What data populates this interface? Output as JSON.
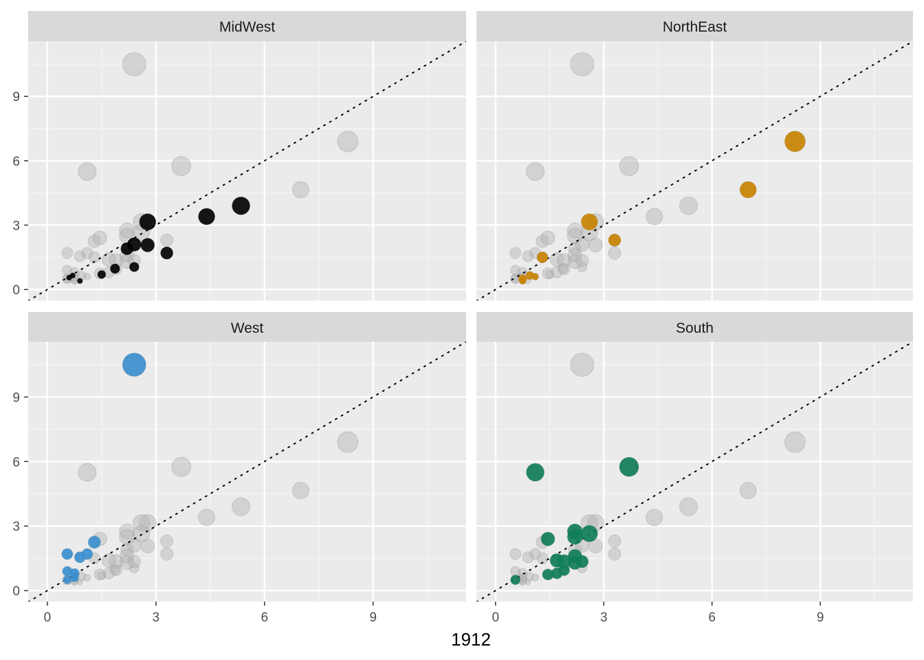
{
  "chart_data": {
    "type": "scatter",
    "title": "",
    "xlabel": "1912",
    "ylabel": "",
    "xlim": [
      -0.53,
      11.57
    ],
    "ylim": [
      -0.51,
      11.57
    ],
    "x_ticks": [
      0,
      3,
      6,
      9
    ],
    "y_ticks": [
      0,
      3,
      6,
      9
    ],
    "grid": true,
    "reference_line": {
      "type": "y = x",
      "style": "dotted",
      "color": "#000000"
    },
    "background_points_color": "#b3b3b3",
    "facets": [
      {
        "name": "MidWest",
        "color": "#000000"
      },
      {
        "name": "NorthEast",
        "color": "#c98300"
      },
      {
        "name": "West",
        "color": "#3a8fcf"
      },
      {
        "name": "South",
        "color": "#0e7d55"
      }
    ],
    "points": [
      {
        "region": "MidWest",
        "x": 0.9,
        "y": 0.4,
        "size": 2
      },
      {
        "region": "MidWest",
        "x": 1.5,
        "y": 0.7,
        "size": 3
      },
      {
        "region": "MidWest",
        "x": 1.87,
        "y": 0.97,
        "size": 3.5
      },
      {
        "region": "MidWest",
        "x": 2.4,
        "y": 1.05,
        "size": 3.5
      },
      {
        "region": "MidWest",
        "x": 2.2,
        "y": 1.9,
        "size": 4.5
      },
      {
        "region": "MidWest",
        "x": 2.4,
        "y": 2.1,
        "size": 5
      },
      {
        "region": "MidWest",
        "x": 2.77,
        "y": 2.07,
        "size": 5
      },
      {
        "region": "MidWest",
        "x": 2.77,
        "y": 3.15,
        "size": 6
      },
      {
        "region": "MidWest",
        "x": 3.3,
        "y": 1.7,
        "size": 4.5
      },
      {
        "region": "MidWest",
        "x": 4.4,
        "y": 3.4,
        "size": 6
      },
      {
        "region": "MidWest",
        "x": 5.35,
        "y": 3.9,
        "size": 6.5
      },
      {
        "region": "MidWest",
        "x": 0.6,
        "y": 0.55,
        "size": 2
      },
      {
        "region": "MidWest",
        "x": 0.7,
        "y": 0.65,
        "size": 2
      },
      {
        "region": "NorthEast",
        "x": 8.3,
        "y": 6.9,
        "size": 7.5
      },
      {
        "region": "NorthEast",
        "x": 7.0,
        "y": 4.65,
        "size": 6
      },
      {
        "region": "NorthEast",
        "x": 2.6,
        "y": 3.15,
        "size": 6
      },
      {
        "region": "NorthEast",
        "x": 3.3,
        "y": 2.3,
        "size": 4.5
      },
      {
        "region": "NorthEast",
        "x": 1.3,
        "y": 1.5,
        "size": 4
      },
      {
        "region": "NorthEast",
        "x": 0.75,
        "y": 0.5,
        "size": 3
      },
      {
        "region": "NorthEast",
        "x": 0.95,
        "y": 0.65,
        "size": 3
      },
      {
        "region": "NorthEast",
        "x": 1.1,
        "y": 0.6,
        "size": 2.5
      },
      {
        "region": "NorthEast",
        "x": 0.75,
        "y": 0.4,
        "size": 2.5
      },
      {
        "region": "West",
        "x": 2.4,
        "y": 10.5,
        "size": 8.5
      },
      {
        "region": "West",
        "x": 0.55,
        "y": 1.7,
        "size": 4
      },
      {
        "region": "West",
        "x": 0.9,
        "y": 1.55,
        "size": 4
      },
      {
        "region": "West",
        "x": 1.1,
        "y": 1.7,
        "size": 4
      },
      {
        "region": "West",
        "x": 1.3,
        "y": 2.25,
        "size": 4.5
      },
      {
        "region": "West",
        "x": 0.55,
        "y": 0.9,
        "size": 3.5
      },
      {
        "region": "West",
        "x": 0.75,
        "y": 0.8,
        "size": 3.5
      },
      {
        "region": "West",
        "x": 0.55,
        "y": 0.5,
        "size": 3
      },
      {
        "region": "West",
        "x": 0.75,
        "y": 0.6,
        "size": 3
      },
      {
        "region": "South",
        "x": 1.1,
        "y": 5.5,
        "size": 6.5
      },
      {
        "region": "South",
        "x": 3.7,
        "y": 5.75,
        "size": 7
      },
      {
        "region": "South",
        "x": 1.45,
        "y": 2.4,
        "size": 5
      },
      {
        "region": "South",
        "x": 2.2,
        "y": 2.75,
        "size": 5.5
      },
      {
        "region": "South",
        "x": 2.2,
        "y": 2.5,
        "size": 5.5
      },
      {
        "region": "South",
        "x": 2.6,
        "y": 2.65,
        "size": 6
      },
      {
        "region": "South",
        "x": 1.7,
        "y": 1.4,
        "size": 5
      },
      {
        "region": "South",
        "x": 1.9,
        "y": 1.35,
        "size": 5
      },
      {
        "region": "South",
        "x": 2.2,
        "y": 1.6,
        "size": 5
      },
      {
        "region": "South",
        "x": 2.2,
        "y": 1.3,
        "size": 5
      },
      {
        "region": "South",
        "x": 2.4,
        "y": 1.35,
        "size": 4.5
      },
      {
        "region": "South",
        "x": 1.45,
        "y": 0.75,
        "size": 4
      },
      {
        "region": "South",
        "x": 1.7,
        "y": 0.8,
        "size": 4
      },
      {
        "region": "South",
        "x": 1.9,
        "y": 0.95,
        "size": 4
      },
      {
        "region": "South",
        "x": 0.55,
        "y": 0.5,
        "size": 3.5
      }
    ]
  }
}
